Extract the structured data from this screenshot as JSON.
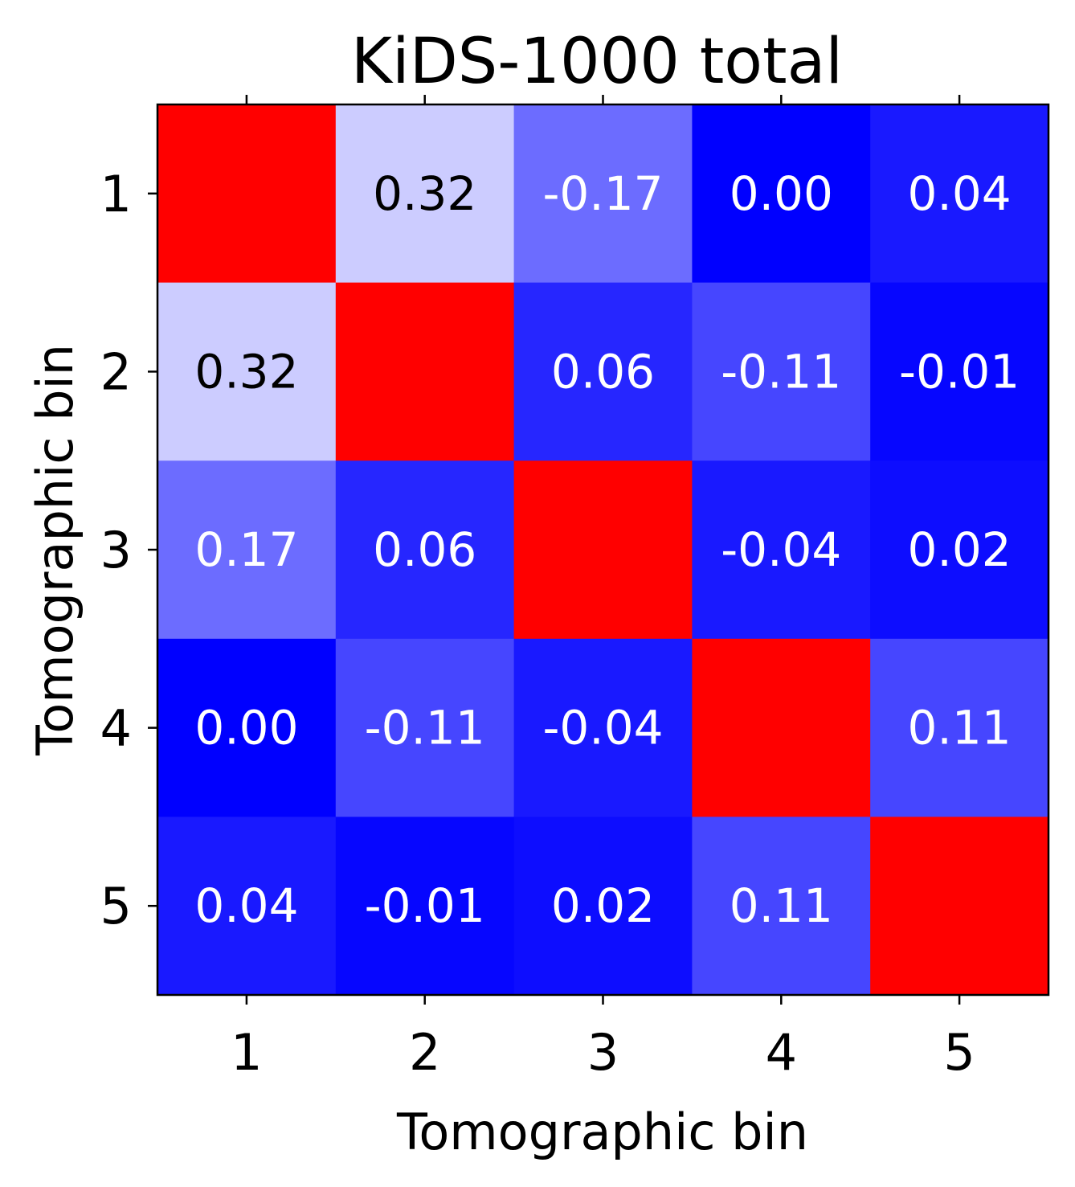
{
  "chart_data": {
    "type": "heatmap",
    "title": "KiDS-1000 total",
    "xlabel": "Tomographic bin",
    "ylabel": "Tomographic bin",
    "x_ticks": [
      "1",
      "2",
      "3",
      "4",
      "5"
    ],
    "y_ticks": [
      "1",
      "2",
      "3",
      "4",
      "5"
    ],
    "matrix": [
      [
        null,
        0.32,
        -0.17,
        0.0,
        0.04
      ],
      [
        0.32,
        null,
        0.06,
        -0.11,
        -0.01
      ],
      [
        0.17,
        0.06,
        null,
        -0.04,
        0.02
      ],
      [
        0.0,
        -0.11,
        -0.04,
        null,
        0.11
      ],
      [
        0.04,
        -0.01,
        0.02,
        0.11,
        null
      ]
    ],
    "labels": [
      [
        "",
        "0.32",
        "-0.17",
        "0.00",
        "0.04"
      ],
      [
        "0.32",
        "",
        "0.06",
        "-0.11",
        "-0.01"
      ],
      [
        "0.17",
        "0.06",
        "",
        "-0.04",
        "0.02"
      ],
      [
        "0.00",
        "-0.11",
        "-0.04",
        "",
        "0.11"
      ],
      [
        "0.04",
        "-0.01",
        "0.02",
        "0.11",
        ""
      ]
    ],
    "colors": {
      "diagonal": "#ff0000",
      "zero": "#0000ff",
      "high": "#ffffff",
      "light_text": "#ffffff",
      "dark_text": "#000000"
    },
    "color_scale_max": 0.4
  }
}
